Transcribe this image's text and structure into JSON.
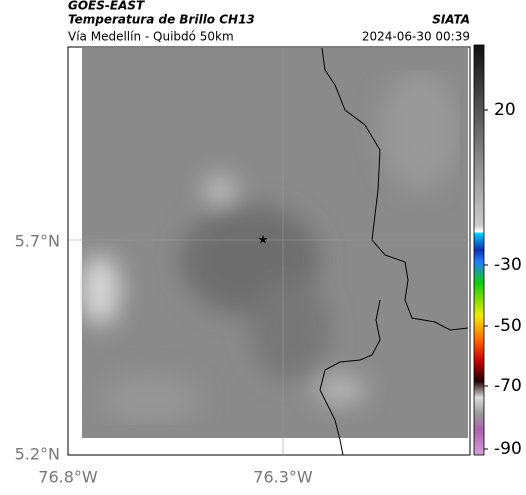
{
  "header": {
    "satellite": "GOES-EAST",
    "product": "Temperatura de Brillo CH13",
    "region": "Vía Medellín - Quibdó 50km",
    "source": "SIATA",
    "datetime": "2024-06-30 00:39"
  },
  "map": {
    "lat_ticks": [
      "5.7°N",
      "5.2°N"
    ],
    "lon_ticks": [
      "76.8°W",
      "76.3°W"
    ]
  },
  "colorbar": {
    "ticks": [
      "20",
      "-30",
      "-50",
      "-70",
      "-90"
    ]
  }
}
